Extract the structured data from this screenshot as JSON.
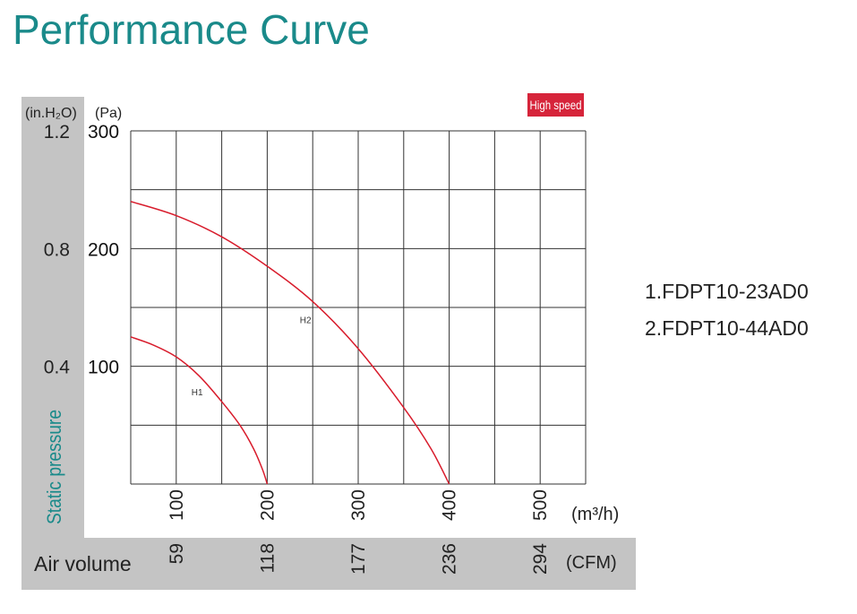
{
  "title": "Performance Curve",
  "badge": {
    "text": "High speed",
    "color": "#d6243a"
  },
  "colors": {
    "curve": "#d81c2c",
    "title": "#1a8a8a",
    "band": "#c4c4c4",
    "grid": "#333333"
  },
  "models": [
    "1.FDPT10-23AD0",
    "2.FDPT10-44AD0"
  ],
  "chart_data": {
    "type": "line",
    "title": "Performance Curve",
    "xlabel": "Air volume",
    "ylabel": "Static pressure",
    "x_unit": "(m³/h)",
    "x_unit_alt": "(CFM)",
    "y_unit": "(Pa)",
    "y_unit_alt": "(in.H₂O)",
    "xlim": [
      50,
      550
    ],
    "ylim": [
      0,
      300
    ],
    "x_ticks": [
      {
        "value": 100,
        "label": "100",
        "alt": "59"
      },
      {
        "value": 200,
        "label": "200",
        "alt": "118"
      },
      {
        "value": 300,
        "label": "300",
        "alt": "177"
      },
      {
        "value": 400,
        "label": "400",
        "alt": "236"
      },
      {
        "value": 500,
        "label": "500",
        "alt": "294"
      }
    ],
    "y_ticks": [
      {
        "value": 100,
        "label": "100",
        "alt": "0.4"
      },
      {
        "value": 200,
        "label": "200",
        "alt": "0.8"
      },
      {
        "value": 300,
        "label": "300",
        "alt": "1.2"
      }
    ],
    "grid": true,
    "series": [
      {
        "name": "H1",
        "x": [
          50,
          75,
          100,
          125,
          150,
          170,
          185,
          195,
          200
        ],
        "y": [
          125,
          118,
          108,
          92,
          70,
          50,
          30,
          12,
          0
        ]
      },
      {
        "name": "H2",
        "x": [
          50,
          100,
          150,
          200,
          250,
          300,
          350,
          380,
          400
        ],
        "y": [
          240,
          228,
          210,
          185,
          155,
          115,
          65,
          30,
          0
        ]
      }
    ]
  }
}
